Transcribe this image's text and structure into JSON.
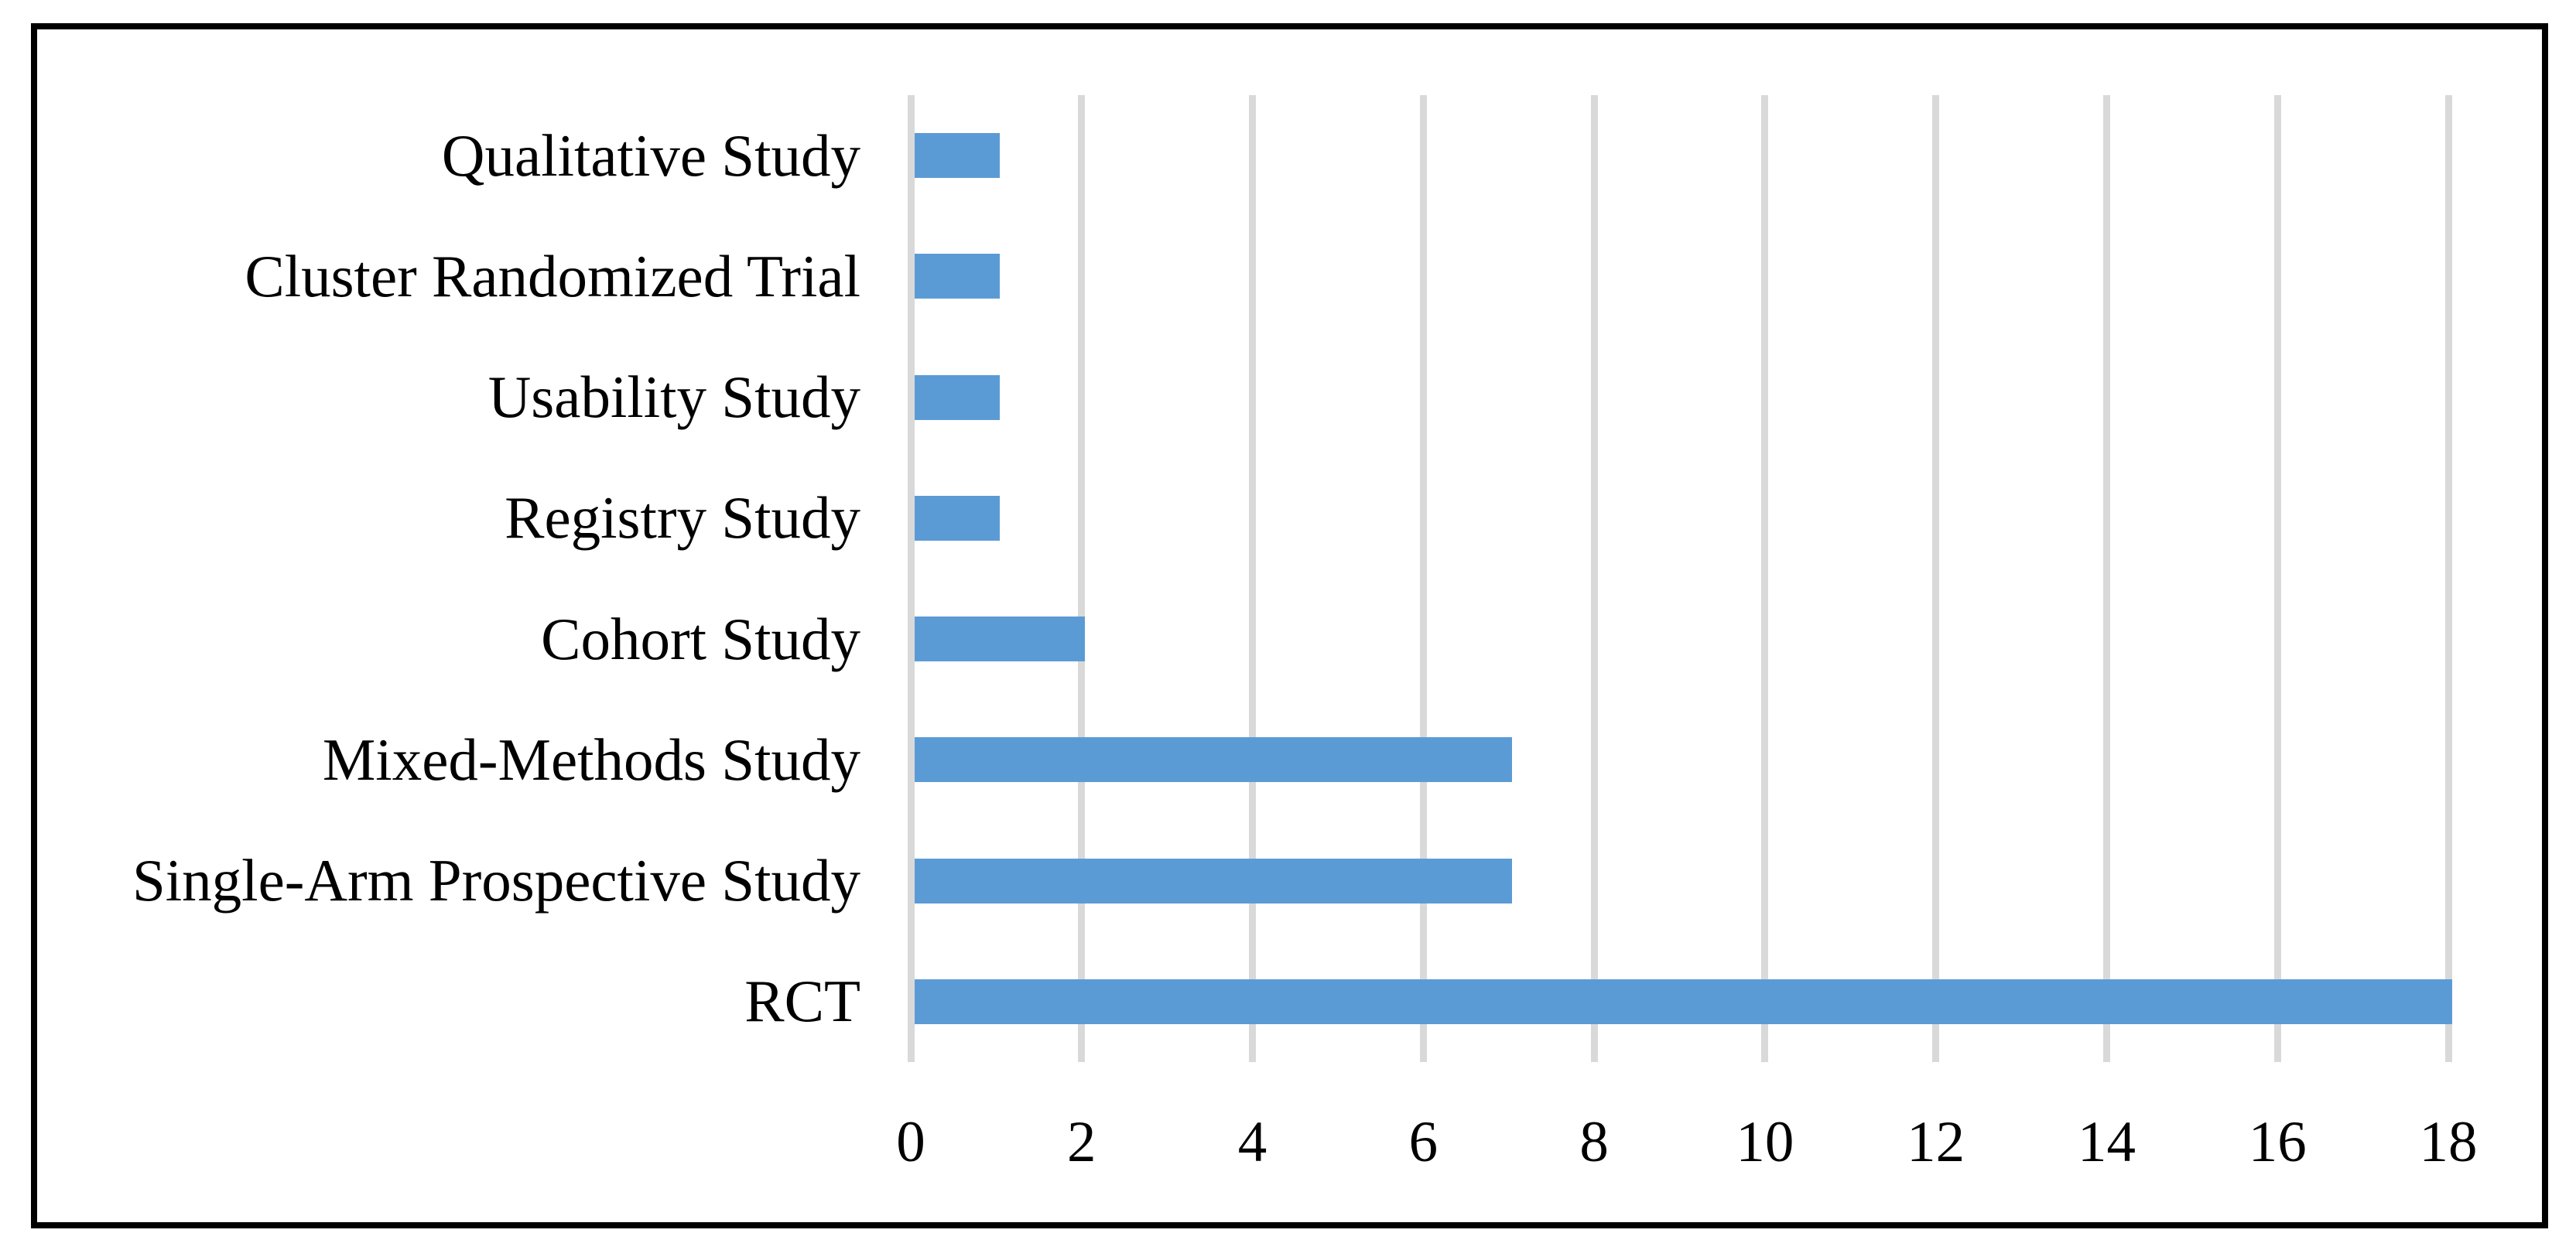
{
  "figure": {
    "background_color": "#FFFFFF",
    "frame_color": "#000000"
  },
  "chart_data": {
    "type": "bar",
    "orientation": "horizontal",
    "title": "",
    "xlabel": "",
    "ylabel": "",
    "categories_top_to_bottom": [
      "Qualitative Study",
      "Cluster Randomized Trial",
      "Usability Study",
      "Registry Study",
      "Cohort Study",
      "Mixed-Methods Study",
      "Single-Arm Prospective Study",
      "RCT"
    ],
    "values": [
      1,
      1,
      1,
      1,
      2,
      7,
      7,
      18
    ],
    "xlim": [
      0,
      18
    ],
    "x_ticks": [
      0,
      2,
      4,
      6,
      8,
      10,
      12,
      14,
      16,
      18
    ],
    "grid": "vertical-gridlines-on",
    "legend": "none",
    "bar_color": "#5B9BD5",
    "gridline_color": "#D9D9D9",
    "text_color": "#000000"
  }
}
